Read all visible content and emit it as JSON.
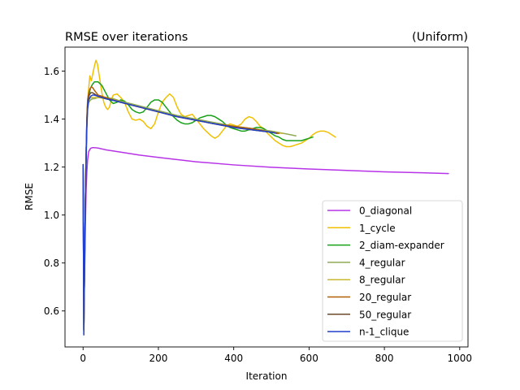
{
  "chart_data": {
    "type": "line",
    "title": "RMSE over iterations",
    "subtitle": "(Uniform)",
    "xlabel": "Iteration",
    "ylabel": "RMSE",
    "xlim": [
      -48,
      1022
    ],
    "ylim": [
      0.45,
      1.7
    ],
    "xticks": [
      0,
      200,
      400,
      600,
      800,
      1000
    ],
    "xtick_labels": [
      "0",
      "200",
      "400",
      "600",
      "800",
      "1000"
    ],
    "yticks": [
      0.6,
      0.8,
      1.0,
      1.2,
      1.4,
      1.6
    ],
    "ytick_labels": [
      "0.6",
      "0.8",
      "1.0",
      "1.2",
      "1.4",
      "1.6"
    ],
    "grid": false,
    "legend_position": "lower-right",
    "series": [
      {
        "name": "0_diagonal",
        "color": "#b733e8",
        "x": [
          0,
          2,
          4,
          6,
          8,
          10,
          12,
          15,
          20,
          25,
          30,
          40,
          60,
          100,
          150,
          200,
          300,
          400,
          500,
          600,
          700,
          800,
          900,
          970
        ],
        "y": [
          1.21,
          0.6,
          0.75,
          0.95,
          1.1,
          1.18,
          1.23,
          1.265,
          1.278,
          1.281,
          1.281,
          1.279,
          1.272,
          1.262,
          1.25,
          1.24,
          1.222,
          1.209,
          1.199,
          1.192,
          1.186,
          1.18,
          1.176,
          1.173
        ]
      },
      {
        "name": "1_cycle",
        "color": "#f0c000",
        "x": [
          0,
          2,
          4,
          6,
          8,
          10,
          12,
          15,
          18,
          22,
          26,
          30,
          34,
          38,
          42,
          46,
          50,
          55,
          60,
          65,
          70,
          75,
          80,
          90,
          100,
          110,
          120,
          130,
          140,
          150,
          160,
          170,
          180,
          190,
          200,
          210,
          220,
          230,
          240,
          250,
          260,
          270,
          280,
          290,
          300,
          310,
          320,
          330,
          340,
          350,
          360,
          370,
          380,
          390,
          400,
          410,
          420,
          430,
          440,
          450,
          460,
          470,
          480,
          490,
          500,
          510,
          520,
          530,
          540,
          550,
          560,
          570,
          580,
          590,
          600,
          610,
          620,
          630,
          640,
          650,
          660,
          670
        ],
        "y": [
          1.21,
          0.52,
          0.8,
          1.05,
          1.25,
          1.38,
          1.47,
          1.53,
          1.58,
          1.56,
          1.59,
          1.62,
          1.645,
          1.63,
          1.59,
          1.55,
          1.51,
          1.47,
          1.45,
          1.44,
          1.45,
          1.48,
          1.5,
          1.505,
          1.49,
          1.47,
          1.43,
          1.4,
          1.395,
          1.4,
          1.39,
          1.37,
          1.36,
          1.38,
          1.43,
          1.47,
          1.49,
          1.505,
          1.49,
          1.45,
          1.42,
          1.41,
          1.415,
          1.42,
          1.4,
          1.38,
          1.36,
          1.345,
          1.33,
          1.32,
          1.33,
          1.35,
          1.37,
          1.38,
          1.375,
          1.37,
          1.38,
          1.4,
          1.41,
          1.405,
          1.39,
          1.37,
          1.36,
          1.34,
          1.325,
          1.31,
          1.3,
          1.29,
          1.285,
          1.285,
          1.29,
          1.295,
          1.3,
          1.31,
          1.32,
          1.335,
          1.345,
          1.35,
          1.35,
          1.345,
          1.335,
          1.325
        ]
      },
      {
        "name": "2_diam-expander",
        "color": "#19a019",
        "x": [
          0,
          2,
          4,
          6,
          8,
          10,
          12,
          15,
          20,
          25,
          30,
          35,
          40,
          50,
          60,
          70,
          80,
          90,
          100,
          110,
          120,
          130,
          140,
          150,
          160,
          170,
          180,
          190,
          200,
          210,
          220,
          230,
          240,
          250,
          260,
          270,
          280,
          290,
          300,
          310,
          320,
          330,
          340,
          350,
          360,
          370,
          380,
          390,
          400,
          410,
          420,
          430,
          440,
          450,
          460,
          470,
          480,
          490,
          500,
          510,
          520,
          530,
          540,
          550,
          560,
          570,
          580,
          590,
          600,
          610
        ],
        "y": [
          1.21,
          0.52,
          0.8,
          1.05,
          1.25,
          1.38,
          1.46,
          1.5,
          1.53,
          1.545,
          1.555,
          1.555,
          1.555,
          1.54,
          1.51,
          1.48,
          1.465,
          1.47,
          1.48,
          1.475,
          1.46,
          1.44,
          1.43,
          1.425,
          1.43,
          1.45,
          1.47,
          1.48,
          1.48,
          1.47,
          1.45,
          1.43,
          1.41,
          1.395,
          1.385,
          1.38,
          1.38,
          1.385,
          1.395,
          1.405,
          1.41,
          1.415,
          1.415,
          1.41,
          1.4,
          1.39,
          1.375,
          1.365,
          1.36,
          1.355,
          1.35,
          1.35,
          1.355,
          1.36,
          1.365,
          1.365,
          1.36,
          1.35,
          1.34,
          1.33,
          1.325,
          1.315,
          1.31,
          1.31,
          1.31,
          1.31,
          1.31,
          1.315,
          1.32,
          1.325
        ]
      },
      {
        "name": "4_regular",
        "color": "#8faa55",
        "x": [
          0,
          2,
          4,
          6,
          8,
          10,
          12,
          15,
          20,
          25,
          30,
          40,
          50,
          60,
          80,
          100,
          150,
          200,
          250,
          300,
          350,
          400,
          450,
          500,
          550,
          565
        ],
        "y": [
          1.21,
          0.52,
          0.8,
          1.05,
          1.25,
          1.38,
          1.45,
          1.47,
          1.48,
          1.485,
          1.485,
          1.49,
          1.49,
          1.49,
          1.485,
          1.475,
          1.455,
          1.435,
          1.415,
          1.4,
          1.385,
          1.37,
          1.36,
          1.35,
          1.335,
          1.33
        ]
      },
      {
        "name": "8_regular",
        "color": "#c8b830",
        "x": [
          0,
          2,
          4,
          6,
          8,
          10,
          12,
          15,
          20,
          25,
          30,
          40,
          50,
          60,
          80,
          100,
          150,
          200,
          250,
          300,
          350,
          400,
          450,
          500,
          530
        ],
        "y": [
          1.21,
          0.52,
          0.8,
          1.05,
          1.25,
          1.38,
          1.45,
          1.48,
          1.49,
          1.49,
          1.49,
          1.49,
          1.488,
          1.485,
          1.48,
          1.47,
          1.45,
          1.43,
          1.41,
          1.395,
          1.38,
          1.365,
          1.355,
          1.345,
          1.34
        ]
      },
      {
        "name": "20_regular",
        "color": "#b06000",
        "x": [
          0,
          2,
          4,
          6,
          8,
          10,
          12,
          15,
          18,
          22,
          26,
          30,
          35,
          40,
          50,
          60,
          80,
          100,
          150,
          200,
          250,
          300,
          350,
          400,
          450,
          500,
          520
        ],
        "y": [
          1.21,
          0.52,
          0.8,
          1.05,
          1.25,
          1.4,
          1.48,
          1.51,
          1.525,
          1.535,
          1.53,
          1.52,
          1.51,
          1.5,
          1.495,
          1.49,
          1.48,
          1.47,
          1.45,
          1.43,
          1.41,
          1.395,
          1.38,
          1.37,
          1.36,
          1.345,
          1.34
        ]
      },
      {
        "name": "50_regular",
        "color": "#6b4a2a",
        "x": [
          0,
          2,
          4,
          6,
          8,
          10,
          12,
          15,
          20,
          25,
          30,
          35,
          40,
          50,
          60,
          80,
          100,
          150,
          200,
          250,
          300,
          350,
          400,
          450,
          500,
          515
        ],
        "y": [
          1.21,
          0.52,
          0.8,
          1.05,
          1.25,
          1.4,
          1.46,
          1.495,
          1.51,
          1.51,
          1.505,
          1.5,
          1.495,
          1.49,
          1.485,
          1.478,
          1.47,
          1.45,
          1.43,
          1.41,
          1.395,
          1.38,
          1.365,
          1.355,
          1.345,
          1.34
        ]
      },
      {
        "name": "n-1_clique",
        "color": "#1f3fcc",
        "x": [
          0,
          2,
          4,
          6,
          8,
          10,
          12,
          15,
          20,
          25,
          30,
          40,
          50,
          60,
          80,
          100,
          150,
          200,
          250,
          300,
          350,
          400,
          450,
          500,
          510
        ],
        "y": [
          1.21,
          0.5,
          0.78,
          1.03,
          1.22,
          1.36,
          1.44,
          1.48,
          1.495,
          1.5,
          1.5,
          1.495,
          1.49,
          1.485,
          1.478,
          1.47,
          1.45,
          1.43,
          1.41,
          1.395,
          1.38,
          1.365,
          1.355,
          1.345,
          1.342
        ]
      }
    ]
  }
}
